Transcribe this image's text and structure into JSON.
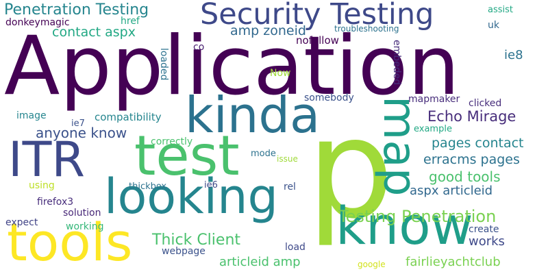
{
  "words": [
    {
      "text": "Application",
      "color": "#440154",
      "orientation": "horizontal"
    },
    {
      "text": "p",
      "color": "#a0da39",
      "orientation": "horizontal"
    },
    {
      "text": "Security Testing",
      "color": "#3e4989",
      "orientation": "horizontal"
    },
    {
      "text": "looking",
      "color": "#25858e",
      "orientation": "horizontal"
    },
    {
      "text": "know",
      "color": "#1f9e89",
      "orientation": "horizontal"
    },
    {
      "text": "kinda",
      "color": "#2c728e",
      "orientation": "horizontal"
    },
    {
      "text": "test",
      "color": "#4ac16d",
      "orientation": "horizontal"
    },
    {
      "text": "ITR",
      "color": "#3e4989",
      "orientation": "horizontal"
    },
    {
      "text": "tools",
      "color": "#fde725",
      "orientation": "horizontal"
    },
    {
      "text": "map",
      "color": "#1f9e89",
      "orientation": "vertical"
    },
    {
      "text": "Penetration Testing",
      "color": "#25858e",
      "orientation": "horizontal"
    },
    {
      "text": "Testing Penetration",
      "color": "#7ad151",
      "orientation": "horizontal"
    },
    {
      "text": "Thick Client",
      "color": "#4ac16d",
      "orientation": "horizontal"
    },
    {
      "text": "Echo Mirage",
      "color": "#472d7b",
      "orientation": "horizontal"
    },
    {
      "text": "anyone know",
      "color": "#3b528b",
      "orientation": "horizontal"
    },
    {
      "text": "contact aspx",
      "color": "#22a884",
      "orientation": "horizontal"
    },
    {
      "text": "amp zoneid",
      "color": "#31688e",
      "orientation": "horizontal"
    },
    {
      "text": "good tools",
      "color": "#4ac16d",
      "orientation": "horizontal"
    },
    {
      "text": "pages contact",
      "color": "#25858e",
      "orientation": "horizontal"
    },
    {
      "text": "erracms pages",
      "color": "#2c728e",
      "orientation": "horizontal"
    },
    {
      "text": "aspx articleid",
      "color": "#31688e",
      "orientation": "horizontal"
    },
    {
      "text": "articleid amp",
      "color": "#4ac16d",
      "orientation": "horizontal"
    },
    {
      "text": "fairlieyachtclub",
      "color": "#7ad151",
      "orientation": "horizontal"
    },
    {
      "text": "works",
      "color": "#3e4989",
      "orientation": "horizontal"
    },
    {
      "text": "ie8",
      "color": "#2c728e",
      "orientation": "horizontal"
    },
    {
      "text": "solution",
      "color": "#482878",
      "orientation": "horizontal"
    },
    {
      "text": "firefox3",
      "color": "#472d7b",
      "orientation": "horizontal"
    },
    {
      "text": "nofollow",
      "color": "#440154",
      "orientation": "horizontal"
    },
    {
      "text": "compatibility",
      "color": "#25858e",
      "orientation": "horizontal"
    },
    {
      "text": "clicked",
      "color": "#472d7b",
      "orientation": "horizontal"
    },
    {
      "text": "mapmaker",
      "color": "#472d7b",
      "orientation": "horizontal"
    },
    {
      "text": "somebody",
      "color": "#3b528b",
      "orientation": "horizontal"
    },
    {
      "text": "example",
      "color": "#22a884",
      "orientation": "horizontal"
    },
    {
      "text": "correctly",
      "color": "#4ac16d",
      "orientation": "horizontal"
    },
    {
      "text": "thickbox",
      "color": "#2c728e",
      "orientation": "horizontal"
    },
    {
      "text": "ie6",
      "color": "#3e4989",
      "orientation": "horizontal"
    },
    {
      "text": "rel",
      "color": "#3b528b",
      "orientation": "horizontal"
    },
    {
      "text": "mode",
      "color": "#2c728e",
      "orientation": "horizontal"
    },
    {
      "text": "issue",
      "color": "#a0da39",
      "orientation": "horizontal"
    },
    {
      "text": "using",
      "color": "#bddf26",
      "orientation": "horizontal"
    },
    {
      "text": "working",
      "color": "#35b779",
      "orientation": "horizontal"
    },
    {
      "text": "expect",
      "color": "#414487",
      "orientation": "horizontal"
    },
    {
      "text": "webpage",
      "color": "#3b528b",
      "orientation": "horizontal"
    },
    {
      "text": "load",
      "color": "#3e4989",
      "orientation": "horizontal"
    },
    {
      "text": "create",
      "color": "#3b528b",
      "orientation": "horizontal"
    },
    {
      "text": "google",
      "color": "#d2e21b",
      "orientation": "horizontal"
    },
    {
      "text": "image",
      "color": "#25858e",
      "orientation": "horizontal"
    },
    {
      "text": "ie7",
      "color": "#3b528b",
      "orientation": "horizontal"
    },
    {
      "text": "donkeymagic",
      "color": "#440154",
      "orientation": "horizontal"
    },
    {
      "text": "href",
      "color": "#22a884",
      "orientation": "horizontal"
    },
    {
      "text": "co",
      "color": "#481f70",
      "orientation": "horizontal"
    },
    {
      "text": "Now",
      "color": "#a0da39",
      "orientation": "horizontal"
    },
    {
      "text": "troubleshooting",
      "color": "#2c728e",
      "orientation": "horizontal"
    },
    {
      "text": "assist",
      "color": "#22a884",
      "orientation": "horizontal"
    },
    {
      "text": "uk",
      "color": "#31688e",
      "orientation": "horizontal"
    },
    {
      "text": "loaded",
      "color": "#2c728e",
      "orientation": "vertical"
    },
    {
      "text": "embeded",
      "color": "#472d7b",
      "orientation": "vertical"
    }
  ]
}
